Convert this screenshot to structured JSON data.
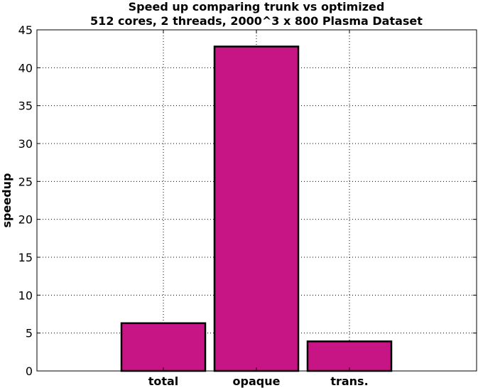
{
  "chart_data": {
    "type": "bar",
    "title": "Speed up comparing trunk vs optimized",
    "subtitle": "512 cores, 2 threads, 2000^3 x 800 Plasma Dataset",
    "xlabel": "",
    "ylabel": "speedup",
    "categories": [
      "total",
      "opaque",
      "trans."
    ],
    "values": [
      6.3,
      42.8,
      3.9
    ],
    "ylim": [
      0,
      45
    ],
    "yticks": [
      0,
      5,
      10,
      15,
      20,
      25,
      30,
      35,
      40,
      45
    ],
    "ytick_labels": [
      "0",
      "5",
      "10",
      "15",
      "20",
      "25",
      "30",
      "35",
      "40",
      "45"
    ],
    "grid": true,
    "bar_color": "#c71585",
    "edge_color": "#000000"
  }
}
